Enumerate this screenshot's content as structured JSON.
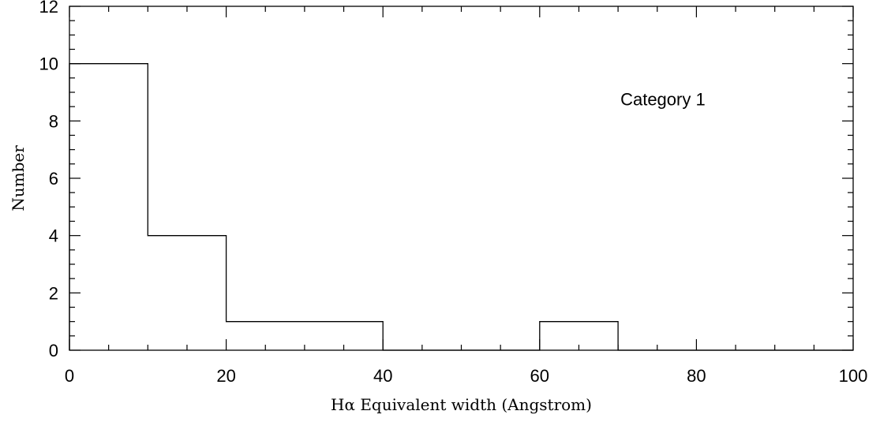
{
  "chart_data": {
    "type": "histogram",
    "xlabel": "Hα Equivalent width (Angstrom)",
    "ylabel": "Number",
    "annotation": "Category 1",
    "xlim": [
      0,
      100
    ],
    "ylim": [
      0,
      12
    ],
    "x_ticks": [
      0,
      20,
      40,
      60,
      80,
      100
    ],
    "x_tick_labels": [
      "0",
      "20",
      "40",
      "60",
      "80",
      "100"
    ],
    "y_ticks": [
      0,
      2,
      4,
      6,
      8,
      10,
      12
    ],
    "y_tick_labels": [
      "0",
      "2",
      "4",
      "6",
      "8",
      "10",
      "12"
    ],
    "x_minor_step": 5,
    "y_minor_step": 0.5,
    "bin_edges": [
      0,
      10,
      20,
      30,
      40,
      50,
      60,
      70,
      80,
      90,
      100
    ],
    "counts": [
      10,
      4,
      1,
      1,
      0,
      0,
      1,
      0,
      0,
      0
    ],
    "grid": false,
    "colors": {
      "line": "#000000",
      "background": "#ffffff"
    }
  }
}
